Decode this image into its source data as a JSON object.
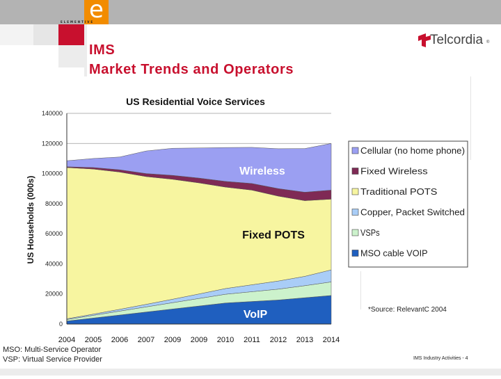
{
  "header": {
    "logo_letter": "e",
    "logo_word": "ELEMENTIVE",
    "title_line1": "IMS",
    "title_line2": "Market Trends and Operators",
    "company": "Telcordia",
    "company_mark": "®"
  },
  "colors": {
    "accent_red": "#c8102e",
    "logo_orange": "#f28c00",
    "topbar_gray": "#b3b3b3"
  },
  "chart_data": {
    "type": "area",
    "title": "US Residential Voice Services",
    "ylabel": "US Households (000s)",
    "xlabel": "",
    "categories": [
      "2004",
      "2005",
      "2006",
      "2007",
      "2009",
      "2009",
      "2010",
      "2011",
      "2012",
      "2013",
      "2014"
    ],
    "ylim": [
      0,
      140000
    ],
    "yticks": [
      "0",
      "20000",
      "40000",
      "60000",
      "80000",
      "100000",
      "120000",
      "140000"
    ],
    "stacked": true,
    "series": [
      {
        "name": "MSO cable VOIP",
        "color": "#1f5fbf",
        "values": [
          2000,
          4000,
          6000,
          8000,
          10000,
          12000,
          14000,
          15000,
          16000,
          17500,
          19000
        ]
      },
      {
        "name": "VSPs",
        "color": "#ccf2cc",
        "values": [
          1000,
          1800,
          2600,
          3400,
          4200,
          5000,
          5800,
          6500,
          7200,
          8000,
          9000
        ]
      },
      {
        "name": "Copper, Packet Switched",
        "color": "#a9cdf7",
        "values": [
          500,
          800,
          1200,
          1700,
          2300,
          3000,
          3800,
          4600,
          5400,
          6200,
          8000
        ]
      },
      {
        "name": "Traditional POTS",
        "color": "#f7f5a0",
        "values": [
          100500,
          96400,
          91200,
          84900,
          79700,
          73800,
          67400,
          62900,
          56400,
          50300,
          47000
        ]
      },
      {
        "name": "Fixed Wireless",
        "color": "#7f2a55",
        "values": [
          500,
          1000,
          1500,
          2000,
          2600,
          3200,
          3800,
          4400,
          5000,
          5600,
          6000
        ]
      },
      {
        "name": "Cellular (no home phone)",
        "color": "#9b9ff2",
        "values": [
          4000,
          6000,
          8500,
          15000,
          18000,
          20000,
          22500,
          24000,
          26500,
          29000,
          31000
        ]
      }
    ],
    "annotations": [
      "Wireless",
      "Fixed POTS",
      "VoIP"
    ],
    "legend_position": "right",
    "legend_entries": [
      "Cellular (no home phone)",
      "Fixed Wireless",
      "Traditional POTS",
      "Copper, Packet Switched",
      "VSPs",
      "MSO cable VOIP"
    ]
  },
  "source_note": "*Source: RelevantC 2004",
  "footnotes": [
    "MSO: Multi-Service Operator",
    "VSP: Virtual Service Provider"
  ],
  "page_label": "IMS Industry Activities - 4"
}
